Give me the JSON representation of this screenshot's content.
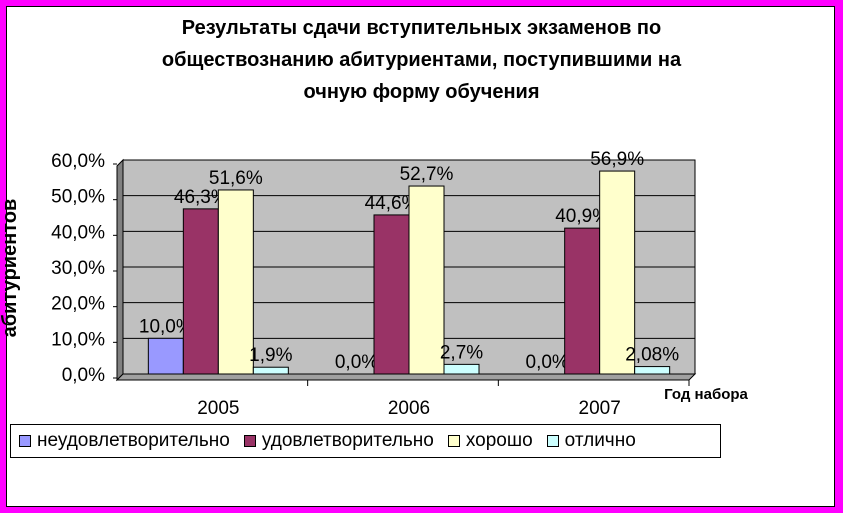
{
  "chart_data": {
    "type": "bar",
    "title": "Результаты сдачи вступительных экзаменов по обществознанию абитуриентами, поступившими на очную форму обучения",
    "title_lines": [
      "Результаты сдачи вступительных экзаменов по",
      "обществознанию абитуриентами, поступившими на",
      "очную форму обучения"
    ],
    "xlabel": "Год набора",
    "ylabel": "абитуриентов",
    "categories": [
      "2005",
      "2006",
      "2007"
    ],
    "ylim": [
      0,
      60
    ],
    "yticks": [
      "0,0%",
      "10,0%",
      "20,0%",
      "30,0%",
      "40,0%",
      "50,0%",
      "60,0%"
    ],
    "grid": true,
    "legend_position": "bottom",
    "series": [
      {
        "name": "неудовлетворительно",
        "color": "#9999ff",
        "values": [
          10.0,
          0.0,
          0.0
        ],
        "labels": [
          "10,0%",
          "0,0%",
          "0,0%"
        ]
      },
      {
        "name": "удовлетворительно",
        "color": "#993366",
        "values": [
          46.3,
          44.6,
          40.9
        ],
        "labels": [
          "46,3%",
          "44,6%",
          "40,9%"
        ]
      },
      {
        "name": "хорошо",
        "color": "#ffffcc",
        "values": [
          51.6,
          52.7,
          56.9
        ],
        "labels": [
          "51,6%",
          "52,7%",
          "56,9%"
        ]
      },
      {
        "name": "отлично",
        "color": "#ccffff",
        "values": [
          1.9,
          2.7,
          2.08
        ],
        "labels": [
          "1,9%",
          "2,7%",
          "2,08%"
        ]
      }
    ],
    "plot_background": "#c0c0c0"
  }
}
